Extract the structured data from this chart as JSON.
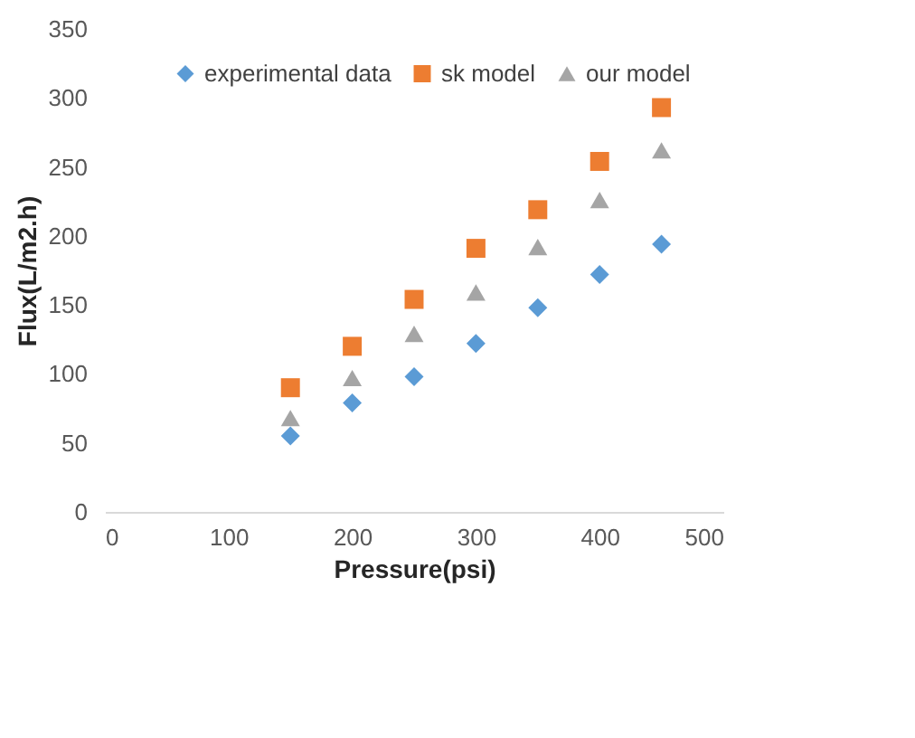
{
  "chart_data": {
    "type": "scatter",
    "xlabel": "Pressure(psi)",
    "ylabel": "Flux(L/m2.h)",
    "x": [
      150,
      200,
      250,
      300,
      350,
      400,
      450
    ],
    "series": [
      {
        "name": "experimental data",
        "color": "#5b9bd5",
        "marker": "diamond",
        "values": [
          55,
          79,
          98,
          122,
          148,
          172,
          194
        ]
      },
      {
        "name": "sk model",
        "color": "#ed7d31",
        "marker": "square",
        "values": [
          90,
          120,
          154,
          191,
          219,
          254,
          293
        ]
      },
      {
        "name": "our model",
        "color": "#a5a5a5",
        "marker": "triangle",
        "values": [
          68,
          97,
          129,
          159,
          192,
          226,
          262
        ]
      }
    ],
    "xlim": [
      0,
      500
    ],
    "xticks": [
      0,
      100,
      200,
      300,
      400,
      500
    ],
    "ylim": [
      0,
      350
    ],
    "yticks": [
      0,
      50,
      100,
      150,
      200,
      250,
      300,
      350
    ],
    "grid": false,
    "legend": "top right"
  }
}
